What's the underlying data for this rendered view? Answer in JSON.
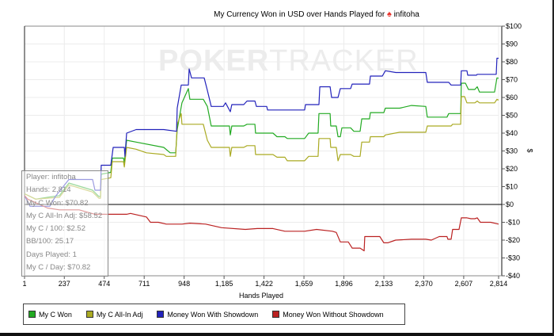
{
  "title": {
    "text": "My Currency Won in USD over Hands Played for",
    "player": "infitoha",
    "icon": "spade-icon"
  },
  "watermark": {
    "part1": "POKER",
    "part2": "TRACKER"
  },
  "stats": [
    "Player: infitoha",
    "Hands: 2,814",
    "My C Won: $70.82",
    "My C All-In Adj: $58.52",
    "My C / 100: $2.52",
    "BB/100: 25.17",
    "Days Played: 1",
    "My C / Day: $70.82"
  ],
  "colors": {
    "green": "#22aa22",
    "yellow": "#aaaa22",
    "blue": "#2222bb",
    "red": "#bb2222"
  },
  "chart_data": {
    "type": "line",
    "title": "My Currency Won in USD over Hands Played for infitoha",
    "xlabel": "Hands Played",
    "ylabel": "$",
    "xlim": [
      1,
      2814
    ],
    "ylim": [
      -40,
      100
    ],
    "x_ticks": [
      1,
      237,
      474,
      711,
      948,
      1185,
      1422,
      1659,
      1896,
      2133,
      2370,
      2607,
      2814
    ],
    "x_tick_labels": [
      "1",
      "237",
      "474",
      "711",
      "948",
      "1,185",
      "1,422",
      "1,659",
      "1,896",
      "2,133",
      "2,370",
      "2,607",
      "2,814"
    ],
    "y_ticks": [
      100,
      90,
      80,
      70,
      60,
      50,
      40,
      30,
      20,
      10,
      0,
      -10,
      -20,
      -30,
      -40
    ],
    "y_tick_labels": [
      "$100",
      "$90",
      "$80",
      "$70",
      "$60",
      "$50",
      "$40",
      "$30",
      "$20",
      "$10",
      "$0",
      "-$10",
      "-$20",
      "-$30",
      "-$40"
    ],
    "grid": true,
    "legend_position": "bottom",
    "series": [
      {
        "name": "My C Won",
        "color": "#22aa22",
        "points": [
          [
            1,
            6
          ],
          [
            67,
            3
          ],
          [
            137,
            4
          ],
          [
            208,
            5
          ],
          [
            264,
            12
          ],
          [
            405,
            8
          ],
          [
            442,
            4.5
          ],
          [
            452,
            4.5
          ],
          [
            456,
            17
          ],
          [
            513,
            18
          ],
          [
            522,
            26
          ],
          [
            588,
            26
          ],
          [
            593,
            23.5
          ],
          [
            607,
            36
          ],
          [
            663,
            35
          ],
          [
            827,
            32
          ],
          [
            865,
            29
          ],
          [
            898,
            29
          ],
          [
            907,
            42
          ],
          [
            935,
            57
          ],
          [
            973,
            65
          ],
          [
            982,
            59
          ],
          [
            1062,
            59
          ],
          [
            1086,
            55
          ],
          [
            1109,
            44
          ],
          [
            1217,
            44
          ],
          [
            1222,
            39
          ],
          [
            1231,
            44
          ],
          [
            1302,
            44
          ],
          [
            1321,
            45
          ],
          [
            1368,
            45
          ],
          [
            1372,
            40
          ],
          [
            1475,
            40
          ],
          [
            1499,
            38
          ],
          [
            1546,
            38
          ],
          [
            1560,
            37
          ],
          [
            1663,
            37
          ],
          [
            1687,
            40
          ],
          [
            1743,
            40
          ],
          [
            1748,
            51
          ],
          [
            1814,
            51
          ],
          [
            1818,
            44
          ],
          [
            1851,
            44
          ],
          [
            1861,
            38
          ],
          [
            1875,
            38
          ],
          [
            1884,
            43
          ],
          [
            1936,
            43
          ],
          [
            1955,
            41
          ],
          [
            1992,
            41
          ],
          [
            2002,
            48
          ],
          [
            2048,
            48
          ],
          [
            2053,
            51.5
          ],
          [
            2133,
            51.5
          ],
          [
            2142,
            54
          ],
          [
            2227,
            54
          ],
          [
            2297,
            55.5
          ],
          [
            2382,
            55
          ],
          [
            2391,
            49
          ],
          [
            2508,
            49
          ],
          [
            2518,
            51
          ],
          [
            2589,
            51
          ],
          [
            2593,
            68
          ],
          [
            2617,
            68
          ],
          [
            2635,
            64.5
          ],
          [
            2673,
            64.5
          ],
          [
            2687,
            66
          ],
          [
            2701,
            63
          ],
          [
            2790,
            63
          ],
          [
            2804,
            71
          ],
          [
            2814,
            70.82
          ]
        ]
      },
      {
        "name": "My C All-In Adj",
        "color": "#aaaa22",
        "points": [
          [
            1,
            6
          ],
          [
            67,
            3
          ],
          [
            137,
            3.5
          ],
          [
            208,
            4
          ],
          [
            264,
            11
          ],
          [
            405,
            7
          ],
          [
            442,
            3.5
          ],
          [
            452,
            3.5
          ],
          [
            456,
            14
          ],
          [
            513,
            15
          ],
          [
            522,
            24
          ],
          [
            588,
            24
          ],
          [
            593,
            21
          ],
          [
            607,
            32
          ],
          [
            663,
            31
          ],
          [
            724,
            29
          ],
          [
            827,
            28
          ],
          [
            842,
            27
          ],
          [
            898,
            27
          ],
          [
            907,
            45
          ],
          [
            931,
            51
          ],
          [
            935,
            45
          ],
          [
            1062,
            45
          ],
          [
            1086,
            36
          ],
          [
            1109,
            32
          ],
          [
            1217,
            32
          ],
          [
            1222,
            27
          ],
          [
            1231,
            32
          ],
          [
            1302,
            32
          ],
          [
            1321,
            33
          ],
          [
            1368,
            33
          ],
          [
            1372,
            28
          ],
          [
            1475,
            28
          ],
          [
            1499,
            26.5
          ],
          [
            1546,
            26.5
          ],
          [
            1560,
            24.5
          ],
          [
            1663,
            24.5
          ],
          [
            1687,
            27
          ],
          [
            1743,
            27
          ],
          [
            1748,
            37
          ],
          [
            1814,
            37
          ],
          [
            1818,
            32
          ],
          [
            1851,
            32
          ],
          [
            1861,
            24.5
          ],
          [
            1875,
            28
          ],
          [
            1936,
            28
          ],
          [
            1955,
            27
          ],
          [
            1992,
            27
          ],
          [
            2002,
            35
          ],
          [
            2048,
            35
          ],
          [
            2053,
            38
          ],
          [
            2133,
            38
          ],
          [
            2142,
            39
          ],
          [
            2227,
            40.5
          ],
          [
            2382,
            40.5
          ],
          [
            2391,
            44
          ],
          [
            2532,
            44
          ],
          [
            2541,
            45
          ],
          [
            2589,
            45
          ],
          [
            2593,
            60.5
          ],
          [
            2612,
            60.5
          ],
          [
            2626,
            57
          ],
          [
            2673,
            57
          ],
          [
            2687,
            58
          ],
          [
            2701,
            57
          ],
          [
            2790,
            57
          ],
          [
            2804,
            59
          ],
          [
            2814,
            58.52
          ]
        ]
      },
      {
        "name": "Money Won With Showdown",
        "color": "#2222bb",
        "points": [
          [
            1,
            5
          ],
          [
            34,
            -1
          ],
          [
            151,
            -1
          ],
          [
            184,
            4.5
          ],
          [
            264,
            14
          ],
          [
            405,
            14
          ],
          [
            419,
            8
          ],
          [
            452,
            8
          ],
          [
            456,
            22
          ],
          [
            513,
            22
          ],
          [
            527,
            32
          ],
          [
            593,
            32
          ],
          [
            597,
            27
          ],
          [
            607,
            40
          ],
          [
            663,
            42
          ],
          [
            827,
            42
          ],
          [
            903,
            41
          ],
          [
            907,
            54
          ],
          [
            931,
            67
          ],
          [
            973,
            67
          ],
          [
            978,
            76
          ],
          [
            992,
            71
          ],
          [
            1067,
            71
          ],
          [
            1086,
            64
          ],
          [
            1109,
            55
          ],
          [
            1180,
            55
          ],
          [
            1194,
            57
          ],
          [
            1222,
            52
          ],
          [
            1231,
            56
          ],
          [
            1302,
            56
          ],
          [
            1321,
            58
          ],
          [
            1368,
            58
          ],
          [
            1377,
            55
          ],
          [
            1438,
            55
          ],
          [
            1443,
            53
          ],
          [
            1663,
            53
          ],
          [
            1668,
            56
          ],
          [
            1748,
            56
          ],
          [
            1753,
            66
          ],
          [
            1814,
            66
          ],
          [
            1823,
            60
          ],
          [
            1861,
            60
          ],
          [
            1875,
            65
          ],
          [
            1936,
            65
          ],
          [
            1945,
            67.5
          ],
          [
            2048,
            67.5
          ],
          [
            2053,
            72
          ],
          [
            2124,
            72
          ],
          [
            2142,
            75
          ],
          [
            2204,
            74
          ],
          [
            2382,
            74
          ],
          [
            2391,
            68.5
          ],
          [
            2518,
            68.5
          ],
          [
            2532,
            67
          ],
          [
            2589,
            67
          ],
          [
            2593,
            75
          ],
          [
            2626,
            75
          ],
          [
            2631,
            72.5
          ],
          [
            2683,
            72.5
          ],
          [
            2687,
            73
          ],
          [
            2800,
            73
          ],
          [
            2804,
            82
          ],
          [
            2814,
            82
          ]
        ]
      },
      {
        "name": "Money Won Without Showdown",
        "color": "#bb2222",
        "points": [
          [
            1,
            5
          ],
          [
            20,
            3
          ],
          [
            67,
            1
          ],
          [
            137,
            -2
          ],
          [
            208,
            -3
          ],
          [
            325,
            -3
          ],
          [
            419,
            -5.5
          ],
          [
            607,
            -5.5
          ],
          [
            630,
            -5
          ],
          [
            724,
            -7
          ],
          [
            748,
            -10
          ],
          [
            795,
            -10
          ],
          [
            842,
            -11
          ],
          [
            935,
            -11
          ],
          [
            982,
            -10.5
          ],
          [
            1076,
            -11
          ],
          [
            1170,
            -13
          ],
          [
            1311,
            -14
          ],
          [
            1382,
            -13.5
          ],
          [
            1475,
            -13.5
          ],
          [
            1546,
            -15
          ],
          [
            1663,
            -15
          ],
          [
            1734,
            -14
          ],
          [
            1828,
            -15
          ],
          [
            1851,
            -15.7
          ],
          [
            1875,
            -21
          ],
          [
            1922,
            -21
          ],
          [
            1945,
            -24.5
          ],
          [
            1992,
            -24.5
          ],
          [
            2016,
            -26
          ],
          [
            2020,
            -18
          ],
          [
            2109,
            -18
          ],
          [
            2133,
            -21.5
          ],
          [
            2156,
            -21.5
          ],
          [
            2203,
            -20
          ],
          [
            2297,
            -19.5
          ],
          [
            2382,
            -19.5
          ],
          [
            2415,
            -20
          ],
          [
            2462,
            -18
          ],
          [
            2508,
            -18
          ],
          [
            2513,
            -19.5
          ],
          [
            2532,
            -19.5
          ],
          [
            2541,
            -14
          ],
          [
            2579,
            -14
          ],
          [
            2593,
            -7.5
          ],
          [
            2626,
            -7.5
          ],
          [
            2650,
            -8
          ],
          [
            2673,
            -8
          ],
          [
            2687,
            -7.5
          ],
          [
            2706,
            -10
          ],
          [
            2767,
            -10
          ],
          [
            2814,
            -11
          ]
        ]
      }
    ]
  }
}
